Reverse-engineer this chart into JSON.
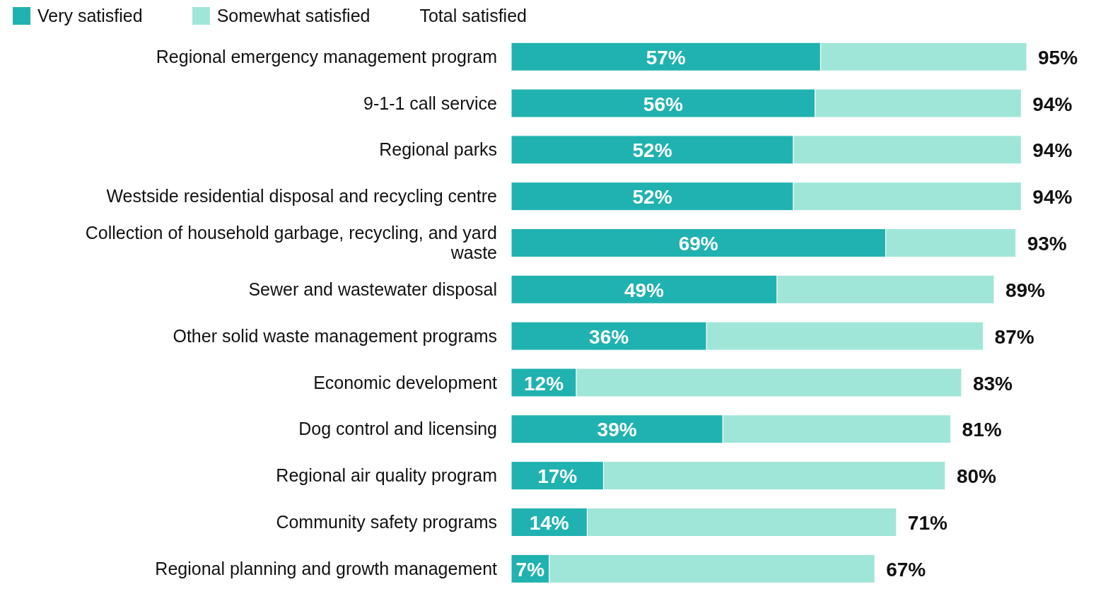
{
  "chart_data": {
    "type": "bar",
    "orientation": "horizontal",
    "stacked": true,
    "legend": "top left",
    "categories": [
      "Regional emergency management program",
      "9-1-1 call service",
      "Regional parks",
      "Westside residential disposal and recycling centre",
      "Collection of household garbage, recycling, and yard waste",
      "Sewer and wastewater disposal",
      "Other solid waste management programs",
      "Economic development",
      "Dog control and licensing",
      "Regional air quality program",
      "Community safety programs",
      "Regional planning and growth management"
    ],
    "series": [
      {
        "name": "Very satisfied",
        "color": "#20b2b0",
        "values": [
          57,
          56,
          52,
          52,
          69,
          49,
          36,
          12,
          39,
          17,
          14,
          7
        ],
        "value_labels": [
          "57%",
          "56%",
          "52%",
          "52%",
          "69%",
          "49%",
          "36%",
          "12%",
          "39%",
          "17%",
          "14%",
          "7%"
        ]
      },
      {
        "name": "Somewhat satisfied",
        "color": "#a0e6d8",
        "values": [
          38,
          38,
          42,
          42,
          24,
          40,
          51,
          71,
          42,
          63,
          57,
          60
        ]
      }
    ],
    "totals": [
      "95%",
      "94%",
      "94%",
      "94%",
      "93%",
      "89%",
      "87%",
      "83%",
      "81%",
      "80%",
      "71%",
      "67%"
    ],
    "annotations": [
      "Total satisfied"
    ]
  }
}
